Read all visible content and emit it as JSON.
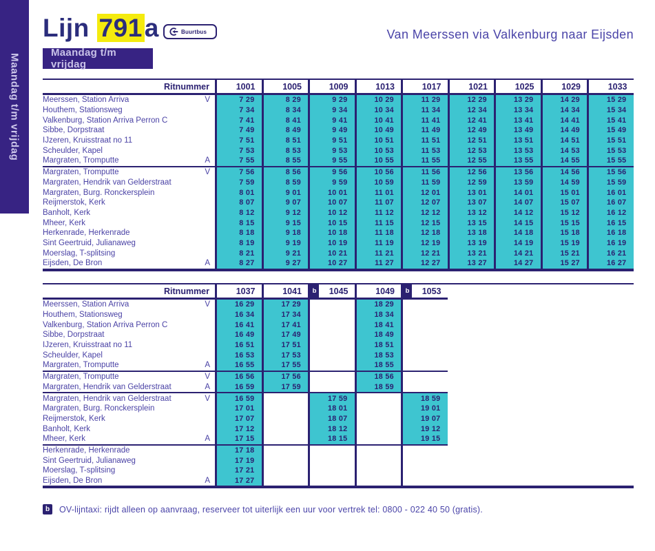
{
  "page": {
    "line_label": "Lijn",
    "line_number": "791",
    "line_suffix": "a",
    "badge_label": "Buurtbus",
    "route_title": "Van Meerssen via Valkenburg naar Eijsden",
    "day_label": "Maandag t/m vrijdag",
    "sidebar_label": "Maandag t/m vrijdag",
    "footnote_symbol": "b",
    "footnote_text": "OV-lijntaxi: rijdt alleen op aanvraag, reserveer tot uiterlijk een uur voor vertrek tel: 0800 - 022 40 50 (gratis)."
  },
  "colors": {
    "navy": "#2b2171",
    "purple": "#372383",
    "teal": "#3ec5d0",
    "yellow": "#f4eb0e",
    "label_purple": "#4a42a5"
  },
  "table1": {
    "header_label": "Ritnummer",
    "columns": [
      "1001",
      "1005",
      "1009",
      "1013",
      "1017",
      "1021",
      "1025",
      "1029",
      "1033"
    ],
    "column_footnotes": [
      "",
      "",
      "",
      "",
      "",
      "",
      "",
      "",
      ""
    ],
    "sections": [
      {
        "rows": [
          {
            "label": "Meerssen, Station Arriva",
            "marker": "V",
            "times": [
              "7 29",
              "8 29",
              "9 29",
              "10 29",
              "11 29",
              "12 29",
              "13 29",
              "14 29",
              "15 29"
            ]
          },
          {
            "label": "Houthem, Stationsweg",
            "marker": "",
            "times": [
              "7 34",
              "8 34",
              "9 34",
              "10 34",
              "11 34",
              "12 34",
              "13 34",
              "14 34",
              "15 34"
            ]
          },
          {
            "label": "Valkenburg, Station Arriva Perron C",
            "marker": "",
            "times": [
              "7 41",
              "8 41",
              "9 41",
              "10 41",
              "11 41",
              "12 41",
              "13 41",
              "14 41",
              "15 41"
            ]
          },
          {
            "label": "Sibbe, Dorpstraat",
            "marker": "",
            "times": [
              "7 49",
              "8 49",
              "9 49",
              "10 49",
              "11 49",
              "12 49",
              "13 49",
              "14 49",
              "15 49"
            ]
          },
          {
            "label": "IJzeren, Kruisstraat no 11",
            "marker": "",
            "times": [
              "7 51",
              "8 51",
              "9 51",
              "10 51",
              "11 51",
              "12 51",
              "13 51",
              "14 51",
              "15 51"
            ]
          },
          {
            "label": "Scheulder, Kapel",
            "marker": "",
            "times": [
              "7 53",
              "8 53",
              "9 53",
              "10 53",
              "11 53",
              "12 53",
              "13 53",
              "14 53",
              "15 53"
            ]
          },
          {
            "label": "Margraten, Tromputte",
            "marker": "A",
            "times": [
              "7 55",
              "8 55",
              "9 55",
              "10 55",
              "11 55",
              "12 55",
              "13 55",
              "14 55",
              "15 55"
            ]
          }
        ]
      },
      {
        "rows": [
          {
            "label": "Margraten, Tromputte",
            "marker": "V",
            "times": [
              "7 56",
              "8 56",
              "9 56",
              "10 56",
              "11 56",
              "12 56",
              "13 56",
              "14 56",
              "15 56"
            ]
          },
          {
            "label": "Margraten, Hendrik van Gelderstraat",
            "marker": "",
            "times": [
              "7 59",
              "8 59",
              "9 59",
              "10 59",
              "11 59",
              "12 59",
              "13 59",
              "14 59",
              "15 59"
            ]
          },
          {
            "label": "Margraten, Burg. Ronckersplein",
            "marker": "",
            "times": [
              "8 01",
              "9 01",
              "10 01",
              "11 01",
              "12 01",
              "13 01",
              "14 01",
              "15 01",
              "16 01"
            ]
          },
          {
            "label": "Reijmerstok, Kerk",
            "marker": "",
            "times": [
              "8 07",
              "9 07",
              "10 07",
              "11 07",
              "12 07",
              "13 07",
              "14 07",
              "15 07",
              "16 07"
            ]
          },
          {
            "label": "Banholt, Kerk",
            "marker": "",
            "times": [
              "8 12",
              "9 12",
              "10 12",
              "11 12",
              "12 12",
              "13 12",
              "14 12",
              "15 12",
              "16 12"
            ]
          },
          {
            "label": "Mheer, Kerk",
            "marker": "",
            "times": [
              "8 15",
              "9 15",
              "10 15",
              "11 15",
              "12 15",
              "13 15",
              "14 15",
              "15 15",
              "16 15"
            ]
          },
          {
            "label": "Herkenrade, Herkenrade",
            "marker": "",
            "times": [
              "8 18",
              "9 18",
              "10 18",
              "11 18",
              "12 18",
              "13 18",
              "14 18",
              "15 18",
              "16 18"
            ]
          },
          {
            "label": "Sint Geertruid, Julianaweg",
            "marker": "",
            "times": [
              "8 19",
              "9 19",
              "10 19",
              "11 19",
              "12 19",
              "13 19",
              "14 19",
              "15 19",
              "16 19"
            ]
          },
          {
            "label": "Moerslag, T-splitsing",
            "marker": "",
            "times": [
              "8 21",
              "9 21",
              "10 21",
              "11 21",
              "12 21",
              "13 21",
              "14 21",
              "15 21",
              "16 21"
            ]
          },
          {
            "label": "Eijsden, De Bron",
            "marker": "A",
            "times": [
              "8 27",
              "9 27",
              "10 27",
              "11 27",
              "12 27",
              "13 27",
              "14 27",
              "15 27",
              "16 27"
            ]
          }
        ]
      }
    ]
  },
  "table2": {
    "header_label": "Ritnummer",
    "columns": [
      "1037",
      "1041",
      "1045",
      "1049",
      "1053"
    ],
    "column_footnotes": [
      "",
      "",
      "b",
      "",
      "b"
    ],
    "sections": [
      {
        "rows": [
          {
            "label": "Meerssen, Station Arriva",
            "marker": "V",
            "times": [
              "16 29",
              "17 29",
              "",
              "18 29",
              ""
            ]
          },
          {
            "label": "Houthem, Stationsweg",
            "marker": "",
            "times": [
              "16 34",
              "17 34",
              "",
              "18 34",
              ""
            ]
          },
          {
            "label": "Valkenburg, Station Arriva Perron C",
            "marker": "",
            "times": [
              "16 41",
              "17 41",
              "",
              "18 41",
              ""
            ]
          },
          {
            "label": "Sibbe, Dorpstraat",
            "marker": "",
            "times": [
              "16 49",
              "17 49",
              "",
              "18 49",
              ""
            ]
          },
          {
            "label": "IJzeren, Kruisstraat no 11",
            "marker": "",
            "times": [
              "16 51",
              "17 51",
              "",
              "18 51",
              ""
            ]
          },
          {
            "label": "Scheulder, Kapel",
            "marker": "",
            "times": [
              "16 53",
              "17 53",
              "",
              "18 53",
              ""
            ]
          },
          {
            "label": "Margraten, Tromputte",
            "marker": "A",
            "times": [
              "16 55",
              "17 55",
              "",
              "18 55",
              ""
            ]
          }
        ]
      },
      {
        "rows": [
          {
            "label": "Margraten, Tromputte",
            "marker": "V",
            "times": [
              "16 56",
              "17 56",
              "",
              "18 56",
              ""
            ]
          },
          {
            "label": "Margraten, Hendrik van Gelderstraat",
            "marker": "A",
            "times": [
              "16 59",
              "17 59",
              "",
              "18 59",
              ""
            ]
          }
        ]
      },
      {
        "rows": [
          {
            "label": "Margraten, Hendrik van Gelderstraat",
            "marker": "V",
            "times": [
              "16 59",
              "",
              "17 59",
              "",
              "18 59"
            ]
          },
          {
            "label": "Margraten, Burg. Ronckersplein",
            "marker": "",
            "times": [
              "17 01",
              "",
              "18 01",
              "",
              "19 01"
            ]
          },
          {
            "label": "Reijmerstok, Kerk",
            "marker": "",
            "times": [
              "17 07",
              "",
              "18 07",
              "",
              "19 07"
            ]
          },
          {
            "label": "Banholt, Kerk",
            "marker": "",
            "times": [
              "17 12",
              "",
              "18 12",
              "",
              "19 12"
            ]
          },
          {
            "label": "Mheer, Kerk",
            "marker": "A",
            "times": [
              "17 15",
              "",
              "18 15",
              "",
              "19 15"
            ]
          }
        ]
      },
      {
        "rows": [
          {
            "label": "Herkenrade, Herkenrade",
            "marker": "",
            "times": [
              "17 18",
              "",
              "",
              "",
              ""
            ]
          },
          {
            "label": "Sint Geertruid, Julianaweg",
            "marker": "",
            "times": [
              "17 19",
              "",
              "",
              "",
              ""
            ]
          },
          {
            "label": "Moerslag, T-splitsing",
            "marker": "",
            "times": [
              "17 21",
              "",
              "",
              "",
              ""
            ]
          },
          {
            "label": "Eijsden, De Bron",
            "marker": "A",
            "times": [
              "17 27",
              "",
              "",
              "",
              ""
            ]
          }
        ]
      }
    ]
  }
}
